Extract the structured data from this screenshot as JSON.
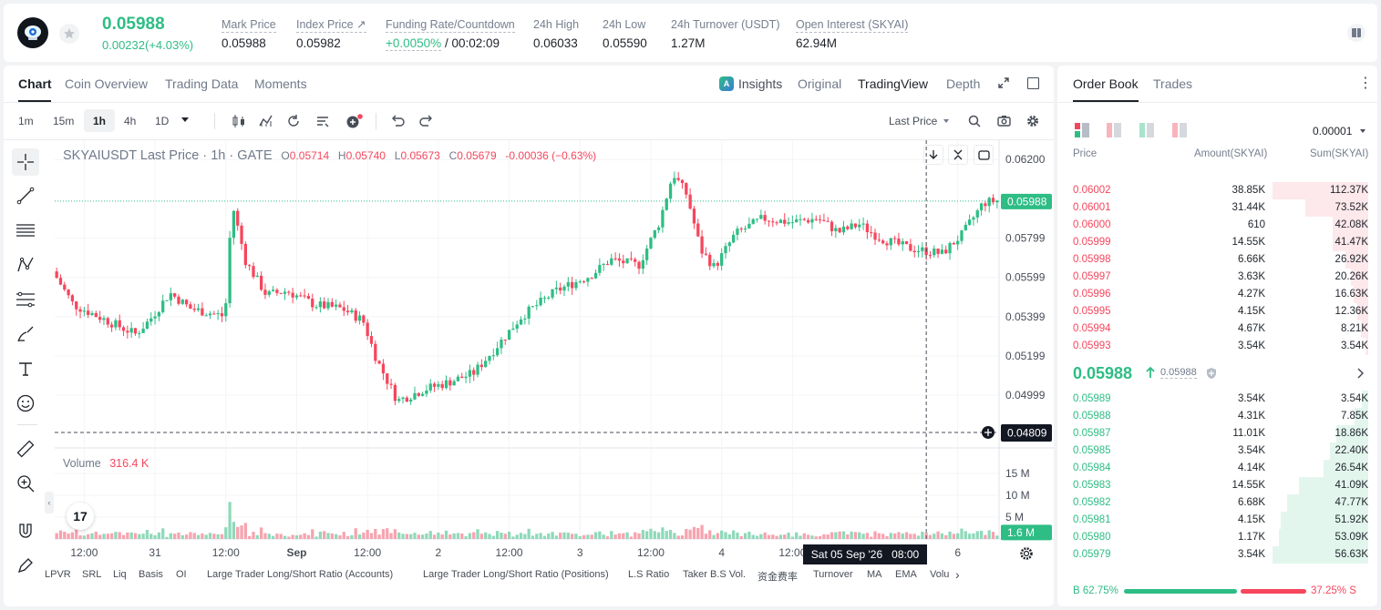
{
  "header": {
    "price": "0.05988",
    "change": "0.00232(+4.03%)",
    "stats": [
      {
        "label": "Mark Price",
        "value": "0.05988"
      },
      {
        "label": "Index Price",
        "value": "0.05982"
      },
      {
        "label": "Funding Rate/Countdown",
        "value_green": "+0.0050%",
        "value_rest": "/ 00:02:09"
      },
      {
        "label": "24h High",
        "value": "0.06033"
      },
      {
        "label": "24h Low",
        "value": "0.05590"
      },
      {
        "label": "24h Turnover (USDT)",
        "value": "1.27M"
      },
      {
        "label": "Open Interest (SKYAI)",
        "value": "62.94M"
      }
    ]
  },
  "chart_tabs": {
    "left": [
      "Chart",
      "Coin Overview",
      "Trading Data",
      "Moments"
    ],
    "right": [
      "Insights",
      "Original",
      "TradingView",
      "Depth"
    ],
    "active_left": "Chart",
    "active_right": "TradingView"
  },
  "toolbar": {
    "intervals": [
      "1m",
      "15m",
      "1h",
      "4h",
      "1D"
    ],
    "active_interval": "1h",
    "price_type": "Last Price"
  },
  "legend": {
    "symbol": "SKYAIUSDT Last Price · 1h · GATE",
    "o_label": "O",
    "o": "0.05714",
    "h_label": "H",
    "h": "0.05740",
    "l_label": "L",
    "l": "0.05673",
    "c_label": "C",
    "c": "0.05679",
    "chg": "-0.00036 (−0.63%)"
  },
  "volume_legend": {
    "label": "Volume",
    "value": "316.4 K"
  },
  "crosshair_label": "Sat 05 Sep '26   08:00",
  "indicators": [
    "LPVR",
    "SRL",
    "Liq",
    "Basis",
    "OI",
    "Large Trader Long/Short Ratio (Accounts)",
    "Large Trader Long/Short Ratio (Positions)",
    "L.S Ratio",
    "Taker B.S Vol.",
    "资金费率",
    "Turnover",
    "MA",
    "EMA",
    "Volu"
  ],
  "chart_data": {
    "type": "candlestick",
    "price_ticks": [
      "0.06200",
      "0.05799",
      "0.05599",
      "0.05399",
      "0.05199",
      "0.04999"
    ],
    "price_tick_values": [
      0.062,
      0.05799,
      0.05599,
      0.05399,
      0.05199,
      0.04999
    ],
    "price_range": [
      0.0473,
      0.0628
    ],
    "volume_ticks": [
      "15 M",
      "10 M",
      "5 M"
    ],
    "volume_tick_values": [
      15,
      10,
      5
    ],
    "volume_max": 20,
    "last_price_label": "0.05988",
    "last_price": 0.05988,
    "crosshair_price_label": "0.04809",
    "crosshair_price": 0.04809,
    "volume_marker_label": "1.6 M",
    "volume_marker": 1.6,
    "x_ticks": [
      "12:00",
      "31",
      "12:00",
      "Sep",
      "12:00",
      "2",
      "12:00",
      "3",
      "12:00",
      "4",
      "12:00",
      "6"
    ],
    "x_tick_index": [
      7,
      25,
      43,
      61,
      79,
      97,
      115,
      133,
      151,
      169,
      187,
      229
    ],
    "crosshair_index": 221,
    "candle_count": 240,
    "anchors": [
      [
        0,
        0.0563
      ],
      [
        6,
        0.0546
      ],
      [
        12,
        0.0541
      ],
      [
        18,
        0.0536
      ],
      [
        24,
        0.0531
      ],
      [
        28,
        0.0538
      ],
      [
        34,
        0.0552
      ],
      [
        40,
        0.0544
      ],
      [
        50,
        0.054
      ],
      [
        52,
        0.0598
      ],
      [
        56,
        0.0568
      ],
      [
        62,
        0.0551
      ],
      [
        68,
        0.0553
      ],
      [
        76,
        0.0546
      ],
      [
        84,
        0.0544
      ],
      [
        90,
        0.0538
      ],
      [
        94,
        0.0518
      ],
      [
        100,
        0.0497
      ],
      [
        108,
        0.0503
      ],
      [
        114,
        0.0506
      ],
      [
        122,
        0.0511
      ],
      [
        128,
        0.0523
      ],
      [
        136,
        0.054
      ],
      [
        146,
        0.0553
      ],
      [
        156,
        0.0561
      ],
      [
        162,
        0.0569
      ],
      [
        170,
        0.0566
      ],
      [
        176,
        0.0588
      ],
      [
        180,
        0.0613
      ],
      [
        184,
        0.0602
      ],
      [
        188,
        0.0574
      ],
      [
        192,
        0.0565
      ],
      [
        198,
        0.0582
      ],
      [
        206,
        0.059
      ],
      [
        214,
        0.0588
      ],
      [
        222,
        0.059
      ],
      [
        228,
        0.0583
      ],
      [
        234,
        0.0587
      ],
      [
        240,
        0.058
      ],
      [
        248,
        0.0575
      ],
      [
        258,
        0.0572
      ],
      [
        264,
        0.0582
      ],
      [
        270,
        0.0598
      ],
      [
        274,
        0.0599
      ]
    ]
  },
  "orderbook": {
    "tabs": [
      "Order Book",
      "Trades"
    ],
    "precision": "0.00001",
    "columns": [
      "Price",
      "Amount(SKYAI)",
      "Sum(SKYAI)"
    ],
    "asks": [
      {
        "price": "0.06002",
        "amount": "38.85K",
        "sum": "112.37K",
        "depth": 1.0
      },
      {
        "price": "0.06001",
        "amount": "31.44K",
        "sum": "73.52K",
        "depth": 0.654
      },
      {
        "price": "0.06000",
        "amount": "610",
        "sum": "42.08K",
        "depth": 0.374
      },
      {
        "price": "0.05999",
        "amount": "14.55K",
        "sum": "41.47K",
        "depth": 0.369
      },
      {
        "price": "0.05998",
        "amount": "6.66K",
        "sum": "26.92K",
        "depth": 0.24
      },
      {
        "price": "0.05997",
        "amount": "3.63K",
        "sum": "20.26K",
        "depth": 0.18
      },
      {
        "price": "0.05996",
        "amount": "4.27K",
        "sum": "16.63K",
        "depth": 0.148
      },
      {
        "price": "0.05995",
        "amount": "4.15K",
        "sum": "12.36K",
        "depth": 0.11
      },
      {
        "price": "0.05994",
        "amount": "4.67K",
        "sum": "8.21K",
        "depth": 0.073
      },
      {
        "price": "0.05993",
        "amount": "3.54K",
        "sum": "3.54K",
        "depth": 0.032
      }
    ],
    "mid_price": "0.05988",
    "mid_mark": "0.05988",
    "bids": [
      {
        "price": "0.05989",
        "amount": "3.54K",
        "sum": "3.54K",
        "depth": 0.063
      },
      {
        "price": "0.05988",
        "amount": "4.31K",
        "sum": "7.85K",
        "depth": 0.139
      },
      {
        "price": "0.05987",
        "amount": "11.01K",
        "sum": "18.86K",
        "depth": 0.333
      },
      {
        "price": "0.05985",
        "amount": "3.54K",
        "sum": "22.40K",
        "depth": 0.396
      },
      {
        "price": "0.05984",
        "amount": "4.14K",
        "sum": "26.54K",
        "depth": 0.469
      },
      {
        "price": "0.05983",
        "amount": "14.55K",
        "sum": "41.09K",
        "depth": 0.726
      },
      {
        "price": "0.05982",
        "amount": "6.68K",
        "sum": "47.77K",
        "depth": 0.844
      },
      {
        "price": "0.05981",
        "amount": "4.15K",
        "sum": "51.92K",
        "depth": 0.917
      },
      {
        "price": "0.05980",
        "amount": "1.17K",
        "sum": "53.09K",
        "depth": 0.938
      },
      {
        "price": "0.05979",
        "amount": "3.54K",
        "sum": "56.63K",
        "depth": 1.0
      }
    ],
    "buy_ratio_label": "B 62.75%",
    "sell_ratio_label": "37.25% S",
    "buy_ratio": 0.6275
  },
  "colors": {
    "up": "#2ebd85",
    "down": "#f6465d",
    "text": "#1e2329",
    "muted": "#76808f"
  }
}
